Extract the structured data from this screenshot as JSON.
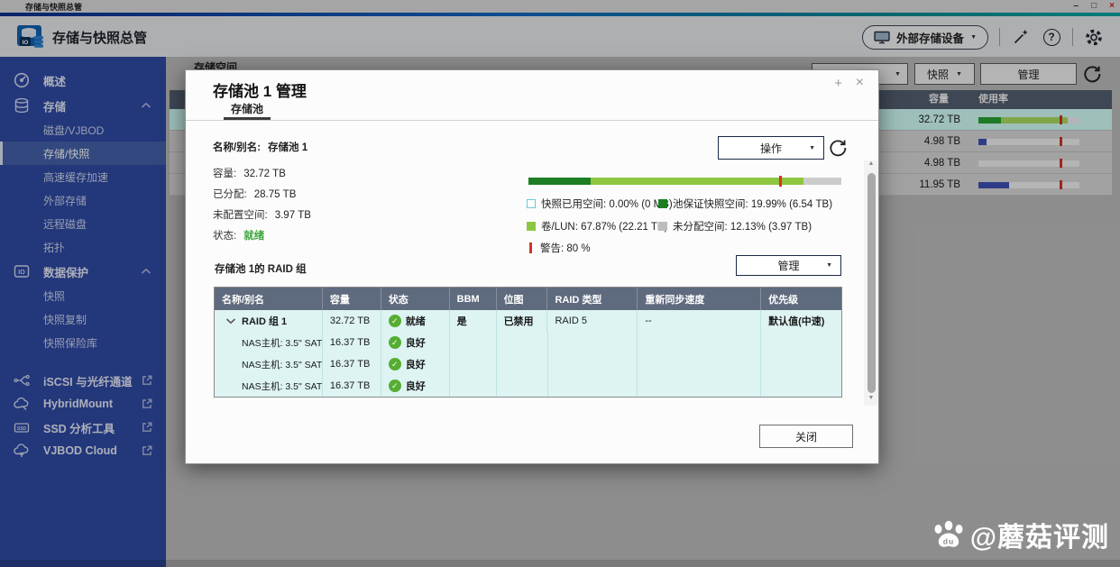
{
  "window": {
    "title": "存储与快照总管",
    "minimize": "–",
    "maximize": "□",
    "close": "×"
  },
  "glyphs": {
    "caret_down": "▼",
    "check": "✓",
    "help": "?",
    "plus": "+",
    "close": "×",
    "arrow_up": "▲",
    "arrow_down": "▼"
  },
  "app_header": {
    "title": "存储与快照总管",
    "external_device_button": "外部存储设备"
  },
  "sidebar": {
    "items": [
      {
        "label": "概述"
      },
      {
        "label": "存储"
      },
      {
        "label": "磁盘/VJBOD"
      },
      {
        "label": "存储/快照"
      },
      {
        "label": "高速缓存加速"
      },
      {
        "label": "外部存储"
      },
      {
        "label": "远程磁盘"
      },
      {
        "label": "拓扑"
      },
      {
        "label": "数据保护"
      },
      {
        "label": "快照"
      },
      {
        "label": "快照复制"
      },
      {
        "label": "快照保险库"
      },
      {
        "label": "iSCSI 与光纤通道"
      },
      {
        "label": "HybridMount"
      },
      {
        "label": "SSD 分析工具"
      },
      {
        "label": "VJBOD Cloud"
      }
    ],
    "selected": "存储/快照"
  },
  "background": {
    "tab_label": "存储空间",
    "toolbar": {
      "snapshot_button": "快照",
      "manage_button": "管理"
    },
    "pool_table": {
      "headers": [
        "容量",
        "使用率"
      ],
      "rows": [
        {
          "capacity": "32.72 TB",
          "selected": true,
          "bar": {
            "dark": 22,
            "light": 88,
            "blue": 0,
            "warning": 80
          }
        },
        {
          "capacity": "4.98 TB",
          "selected": false,
          "bar": {
            "dark": 0,
            "light": 0,
            "blue": 8,
            "warning": 80
          }
        },
        {
          "capacity": "4.98 TB",
          "selected": false,
          "bar": {
            "dark": 0,
            "light": 0,
            "blue": 0,
            "warning": 80
          }
        },
        {
          "capacity": "11.95 TB",
          "selected": false,
          "bar": {
            "dark": 0,
            "light": 0,
            "blue": 30,
            "warning": 80
          }
        }
      ]
    }
  },
  "dialog": {
    "title": "存储池 1 管理",
    "tab": "存储池",
    "info": {
      "name_label": "名称/别名:",
      "name_value": "存储池 1",
      "capacity_label": "容量:",
      "capacity_value": "32.72 TB",
      "allocated_label": "已分配:",
      "allocated_value": "28.75 TB",
      "unconfigured_label": "未配置空间:",
      "unconfigured_value": "3.97 TB",
      "status_label": "状态:",
      "status_value": "就绪"
    },
    "action_button": "操作",
    "usage": {
      "segments": [
        {
          "name": "池保证快照空间",
          "percent": 19.99,
          "color": "#1e7e23"
        },
        {
          "name": "卷/LUN",
          "percent": 67.87,
          "color": "#8dc63f"
        },
        {
          "name": "未分配空间",
          "percent": 12.13,
          "color": "#cccccc"
        }
      ],
      "warning_percent": 80
    },
    "legend": [
      {
        "label": "快照已用空间: 0.00% (0 MB)"
      },
      {
        "label": "池保证快照空间: 19.99% (6.54 TB)"
      },
      {
        "label": "卷/LUN: 67.87% (22.21 TB)"
      },
      {
        "label": "未分配空间: 12.13% (3.97 TB)"
      },
      {
        "label": "警告: 80 %"
      }
    ],
    "raid_section_title": "存储池 1的 RAID 组",
    "manage_button": "管理",
    "raid_table": {
      "headers": [
        "名称/别名",
        "容量",
        "状态",
        "BBM",
        "位图",
        "RAID 类型",
        "重新同步速度",
        "优先级"
      ],
      "rows": [
        {
          "name": "RAID 组 1",
          "capacity": "32.72 TB",
          "status": "就绪",
          "bbm": "是",
          "bitmap": "已禁用",
          "raid_type": "RAID 5",
          "resync": "--",
          "priority": "默认值(中速)"
        },
        {
          "name": "NAS主机: 3.5\" SAT...",
          "capacity": "16.37 TB",
          "status": "良好",
          "bbm": "",
          "bitmap": "",
          "raid_type": "",
          "resync": "",
          "priority": ""
        },
        {
          "name": "NAS主机: 3.5\" SAT...",
          "capacity": "16.37 TB",
          "status": "良好",
          "bbm": "",
          "bitmap": "",
          "raid_type": "",
          "resync": "",
          "priority": ""
        },
        {
          "name": "NAS主机: 3.5\" SAT...",
          "capacity": "16.37 TB",
          "status": "良好",
          "bbm": "",
          "bitmap": "",
          "raid_type": "",
          "resync": "",
          "priority": ""
        }
      ]
    },
    "close_button": "关闭"
  },
  "watermark": {
    "text": "@蘑菇评测"
  },
  "colors": {
    "sidebar_blue": "#2f4aa5",
    "selected_item_blue": "#4361a9",
    "dark_green": "#1e7e23",
    "light_green": "#8dc63f",
    "warning_red": "#d43225",
    "status_green": "#3fa43f",
    "table_header_slate": "#5e6a7d",
    "row_cyan": "#ddf4f3",
    "selected_row_teal": "#d3fff8",
    "volume_blue": "#3f51b5"
  }
}
